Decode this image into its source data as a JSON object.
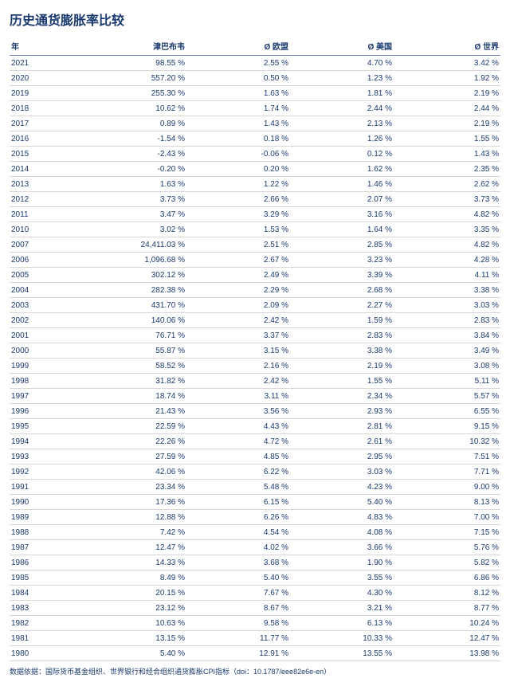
{
  "title": "历史通货膨胀率比较",
  "columns": [
    "年",
    "津巴布韦",
    "Ø 欧盟",
    "Ø 美国",
    "Ø 世界"
  ],
  "rows": [
    [
      "2021",
      "98.55 %",
      "2.55 %",
      "4.70 %",
      "3.42 %"
    ],
    [
      "2020",
      "557.20 %",
      "0.50 %",
      "1.23 %",
      "1.92 %"
    ],
    [
      "2019",
      "255.30 %",
      "1.63 %",
      "1.81 %",
      "2.19 %"
    ],
    [
      "2018",
      "10.62 %",
      "1.74 %",
      "2.44 %",
      "2.44 %"
    ],
    [
      "2017",
      "0.89 %",
      "1.43 %",
      "2.13 %",
      "2.19 %"
    ],
    [
      "2016",
      "-1.54 %",
      "0.18 %",
      "1.26 %",
      "1.55 %"
    ],
    [
      "2015",
      "-2.43 %",
      "-0.06 %",
      "0.12 %",
      "1.43 %"
    ],
    [
      "2014",
      "-0.20 %",
      "0.20 %",
      "1.62 %",
      "2.35 %"
    ],
    [
      "2013",
      "1.63 %",
      "1.22 %",
      "1.46 %",
      "2.62 %"
    ],
    [
      "2012",
      "3.73 %",
      "2.66 %",
      "2.07 %",
      "3.73 %"
    ],
    [
      "2011",
      "3.47 %",
      "3.29 %",
      "3.16 %",
      "4.82 %"
    ],
    [
      "2010",
      "3.02 %",
      "1.53 %",
      "1.64 %",
      "3.35 %"
    ],
    [
      "2007",
      "24,411.03 %",
      "2.51 %",
      "2.85 %",
      "4.82 %"
    ],
    [
      "2006",
      "1,096.68 %",
      "2.67 %",
      "3.23 %",
      "4.28 %"
    ],
    [
      "2005",
      "302.12 %",
      "2.49 %",
      "3.39 %",
      "4.11 %"
    ],
    [
      "2004",
      "282.38 %",
      "2.29 %",
      "2.68 %",
      "3.38 %"
    ],
    [
      "2003",
      "431.70 %",
      "2.09 %",
      "2.27 %",
      "3.03 %"
    ],
    [
      "2002",
      "140.06 %",
      "2.42 %",
      "1.59 %",
      "2.83 %"
    ],
    [
      "2001",
      "76.71 %",
      "3.37 %",
      "2.83 %",
      "3.84 %"
    ],
    [
      "2000",
      "55.87 %",
      "3.15 %",
      "3.38 %",
      "3.49 %"
    ],
    [
      "1999",
      "58.52 %",
      "2.16 %",
      "2.19 %",
      "3.08 %"
    ],
    [
      "1998",
      "31.82 %",
      "2.42 %",
      "1.55 %",
      "5.11 %"
    ],
    [
      "1997",
      "18.74 %",
      "3.11 %",
      "2.34 %",
      "5.57 %"
    ],
    [
      "1996",
      "21.43 %",
      "3.56 %",
      "2.93 %",
      "6.55 %"
    ],
    [
      "1995",
      "22.59 %",
      "4.43 %",
      "2.81 %",
      "9.15 %"
    ],
    [
      "1994",
      "22.26 %",
      "4.72 %",
      "2.61 %",
      "10.32 %"
    ],
    [
      "1993",
      "27.59 %",
      "4.85 %",
      "2.95 %",
      "7.51 %"
    ],
    [
      "1992",
      "42.06 %",
      "6.22 %",
      "3.03 %",
      "7.71 %"
    ],
    [
      "1991",
      "23.34 %",
      "5.48 %",
      "4.23 %",
      "9.00 %"
    ],
    [
      "1990",
      "17.36 %",
      "6.15 %",
      "5.40 %",
      "8.13 %"
    ],
    [
      "1989",
      "12.88 %",
      "6.26 %",
      "4.83 %",
      "7.00 %"
    ],
    [
      "1988",
      "7.42 %",
      "4.54 %",
      "4.08 %",
      "7.15 %"
    ],
    [
      "1987",
      "12.47 %",
      "4.02 %",
      "3.66 %",
      "5.76 %"
    ],
    [
      "1986",
      "14.33 %",
      "3.68 %",
      "1.90 %",
      "5.82 %"
    ],
    [
      "1985",
      "8.49 %",
      "5.40 %",
      "3.55 %",
      "6.86 %"
    ],
    [
      "1984",
      "20.15 %",
      "7.67 %",
      "4.30 %",
      "8.12 %"
    ],
    [
      "1983",
      "23.12 %",
      "8.67 %",
      "3.21 %",
      "8.77 %"
    ],
    [
      "1982",
      "10.63 %",
      "9.58 %",
      "6.13 %",
      "10.24 %"
    ],
    [
      "1981",
      "13.15 %",
      "11.77 %",
      "10.33 %",
      "12.47 %"
    ],
    [
      "1980",
      "5.40 %",
      "12.91 %",
      "13.55 %",
      "13.98 %"
    ]
  ],
  "footnote": "数据依据：国际货币基金组织、世界银行和经合组织通货膨胀CPI指标（doi：10.1787/eee82e6e-en）"
}
